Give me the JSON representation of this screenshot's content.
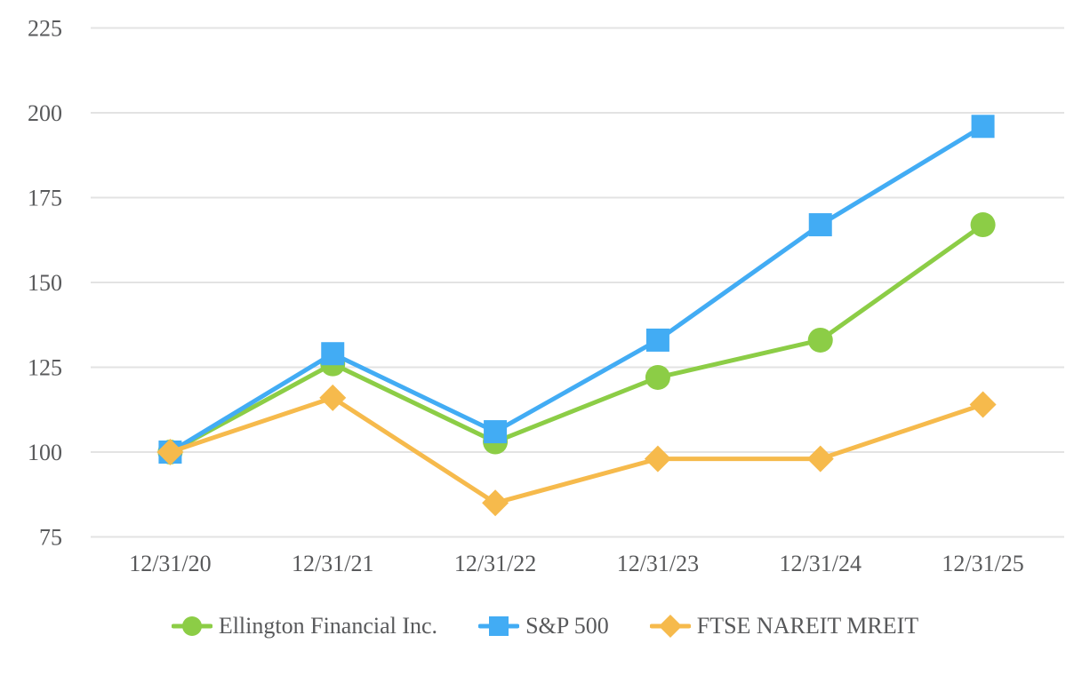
{
  "chart_data": {
    "type": "line",
    "title": "",
    "xlabel": "",
    "ylabel": "",
    "x": [
      "12/31/20",
      "12/31/21",
      "12/31/22",
      "12/31/23",
      "12/31/24",
      "12/31/25"
    ],
    "series": [
      {
        "name": "Ellington Financial Inc.",
        "marker": "circle",
        "color": "#8CCD46",
        "values": [
          100,
          126,
          103,
          122,
          133,
          167
        ]
      },
      {
        "name": "S&P 500",
        "marker": "square",
        "color": "#42ACF4",
        "values": [
          100,
          129,
          106,
          133,
          167,
          196
        ]
      },
      {
        "name": "FTSE NAREIT MREIT",
        "marker": "diamond",
        "color": "#F6BA4C",
        "values": [
          100,
          116,
          85,
          98,
          98,
          114
        ]
      }
    ],
    "ylim": [
      75,
      225
    ],
    "yticks": [
      225,
      200,
      175,
      150,
      125,
      100,
      75
    ],
    "grid": "horizontal",
    "legend_position": "bottom"
  },
  "style": {
    "background": "#FFFFFF",
    "grid_color": "#E3E3E3",
    "text_color": "#58595B"
  }
}
